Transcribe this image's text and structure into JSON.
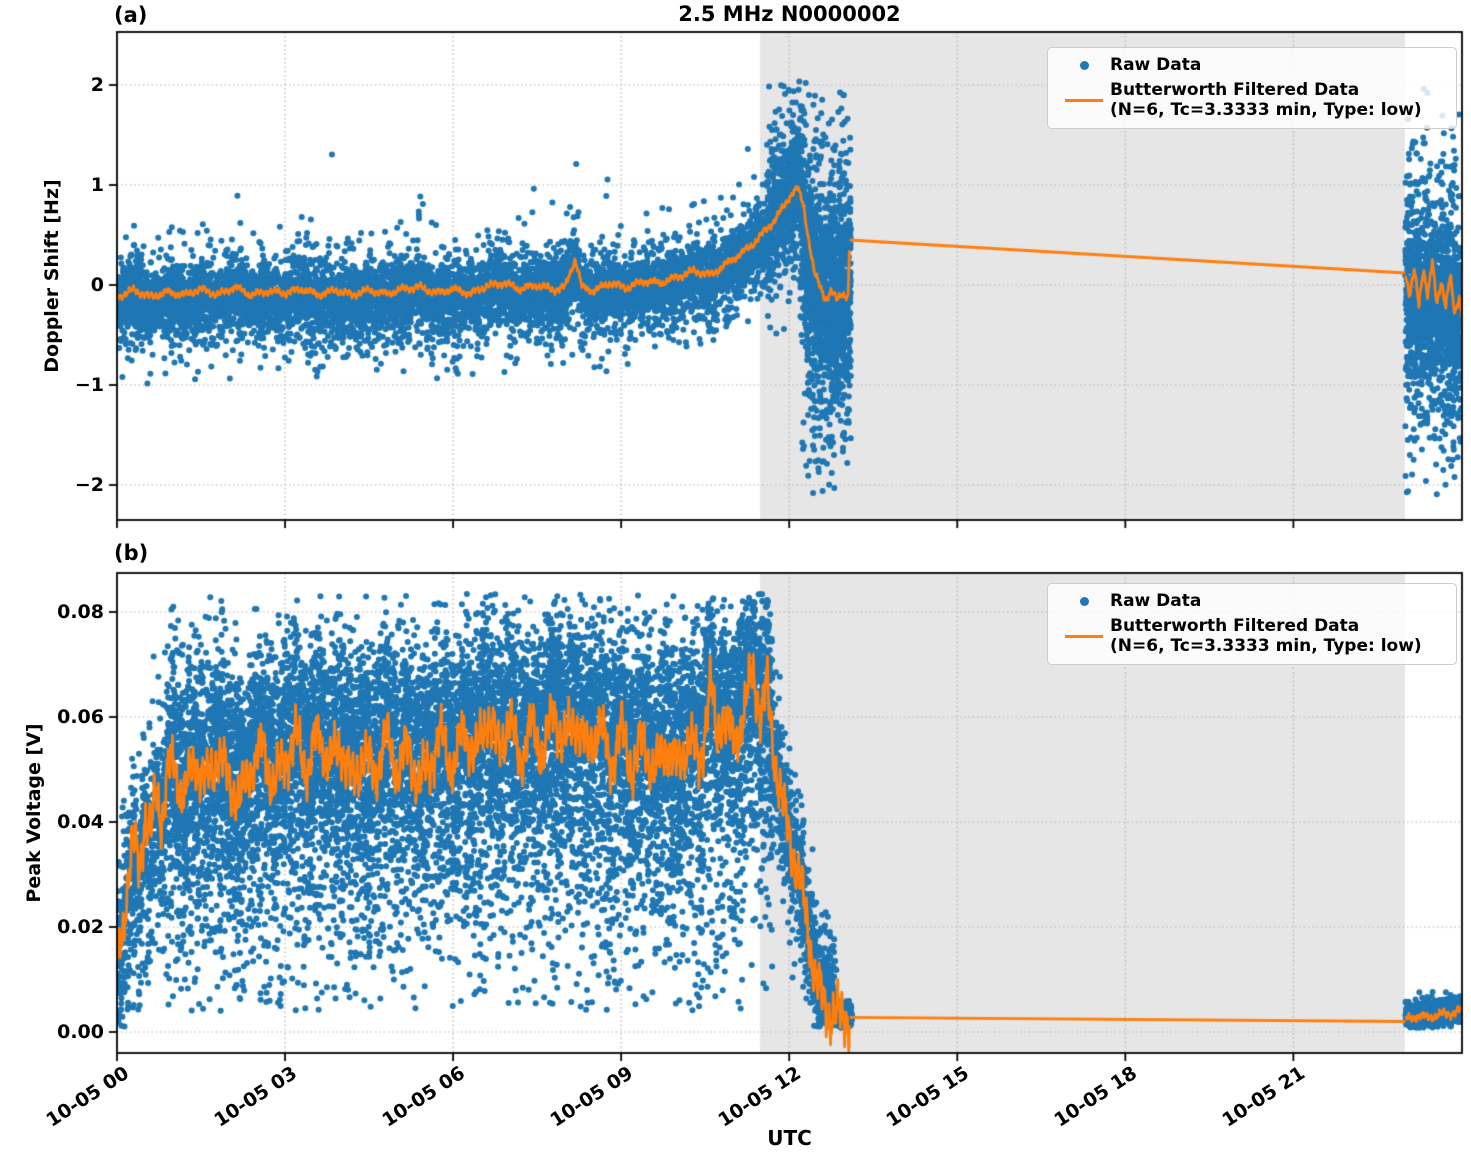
{
  "figure": {
    "panel_count": 2,
    "background": "#ffffff"
  },
  "legend": {
    "raw_label": "Raw Data",
    "filtered_label_line1": "Butterworth Filtered Data",
    "filtered_label_line2": "(N=6, Tc=3.3333 min, Type: low)"
  },
  "colors": {
    "raw": "#1f77b4",
    "filtered": "#ff7f0e",
    "shaded_region": "#e6e6e6",
    "grid": "#b3b3b3",
    "spine": "#000000",
    "legend_border": "#cccccc"
  },
  "chart_data": [
    {
      "type": "scatter",
      "panel_label": "(a)",
      "title": "2.5 MHz N0000002",
      "ylabel": "Doppler Shift [Hz]",
      "x_unit": "hours since 10-05 00:00 UTC",
      "x_axis": {
        "lim": [
          0,
          24.01
        ],
        "ticks": [
          0,
          3,
          6,
          9,
          12,
          15,
          18,
          21
        ]
      },
      "y_axis": {
        "lim": [
          -2.35,
          2.53
        ],
        "ticks": [
          -2,
          -1,
          0,
          1,
          2
        ],
        "tick_labels": [
          "−2",
          "−1",
          "0",
          "1",
          "2"
        ]
      },
      "shaded_region": {
        "t0": 11.48,
        "t1": 22.99
      },
      "legend_entries": [
        "Raw Data",
        "Butterworth Filtered Data (N=6, Tc=3.3333 min, Type: low)"
      ],
      "filtered_segments": [
        {
          "wiggle_amp": 0.035,
          "points": [
            [
              0,
              -0.12
            ],
            [
              0.3,
              -0.05
            ],
            [
              0.6,
              -0.12
            ],
            [
              0.9,
              -0.07
            ],
            [
              1.2,
              -0.1
            ],
            [
              1.5,
              -0.04
            ],
            [
              1.8,
              -0.1
            ],
            [
              2.1,
              -0.02
            ],
            [
              2.4,
              -0.1
            ],
            [
              2.7,
              -0.06
            ],
            [
              3,
              -0.08
            ],
            [
              3.3,
              -0.04
            ],
            [
              3.6,
              -0.1
            ],
            [
              3.9,
              -0.05
            ],
            [
              4.2,
              -0.1
            ],
            [
              4.5,
              -0.05
            ],
            [
              4.8,
              -0.09
            ],
            [
              5.1,
              -0.04
            ],
            [
              5.4,
              -0.02
            ],
            [
              5.7,
              -0.08
            ],
            [
              6,
              -0.04
            ],
            [
              6.3,
              -0.09
            ],
            [
              6.6,
              -0.01
            ],
            [
              6.9,
              0.02
            ],
            [
              7.2,
              -0.04
            ],
            [
              7.5,
              0
            ],
            [
              7.8,
              -0.05
            ],
            [
              8,
              -0.02
            ],
            [
              8.18,
              0.26
            ],
            [
              8.3,
              -0.02
            ],
            [
              8.5,
              -0.06
            ],
            [
              8.8,
              0.02
            ],
            [
              9.1,
              -0.03
            ],
            [
              9.4,
              0.04
            ],
            [
              9.7,
              0.02
            ],
            [
              10,
              0.08
            ],
            [
              10.3,
              0.14
            ],
            [
              10.6,
              0.1
            ],
            [
              10.9,
              0.22
            ],
            [
              11.1,
              0.3
            ],
            [
              11.3,
              0.38
            ],
            [
              11.5,
              0.5
            ],
            [
              11.7,
              0.62
            ],
            [
              11.9,
              0.78
            ],
            [
              12.05,
              0.92
            ],
            [
              12.15,
              0.97
            ],
            [
              12.25,
              0.8
            ],
            [
              12.35,
              0.45
            ],
            [
              12.45,
              0.12
            ],
            [
              12.55,
              -0.02
            ],
            [
              12.65,
              -0.14
            ],
            [
              12.75,
              -0.06
            ],
            [
              12.85,
              -0.15
            ],
            [
              12.95,
              -0.08
            ],
            [
              13.05,
              -0.12
            ],
            [
              13.08,
              0.45
            ]
          ]
        },
        {
          "wiggle_amp": 0,
          "points": [
            [
              13.08,
              0.45
            ],
            [
              23.0,
              0.12
            ]
          ]
        },
        {
          "wiggle_amp": 0.05,
          "points": [
            [
              23.0,
              0.12
            ],
            [
              23.08,
              -0.12
            ],
            [
              23.16,
              0.14
            ],
            [
              23.24,
              -0.18
            ],
            [
              23.32,
              0.18
            ],
            [
              23.4,
              -0.12
            ],
            [
              23.48,
              0.22
            ],
            [
              23.56,
              -0.18
            ],
            [
              23.64,
              0.05
            ],
            [
              23.72,
              -0.22
            ],
            [
              23.8,
              0.08
            ],
            [
              23.88,
              -0.28
            ],
            [
              23.96,
              -0.1
            ],
            [
              24.01,
              -0.3
            ]
          ]
        }
      ],
      "raw_segments": [
        {
          "t0": 0,
          "t1": 11.6,
          "n": 9000,
          "center": "filtered",
          "mix": [
            [
              0.5,
              0.12,
              -0.03
            ],
            [
              0.3,
              0.2,
              -0.1
            ],
            [
              0.16,
              0.3,
              -0.12
            ],
            [
              0.04,
              0.3,
              0.18
            ]
          ],
          "clip": [
            -1.0,
            1.6
          ]
        },
        {
          "t0": 11.6,
          "t1": 12.2,
          "n": 800,
          "center": "filtered",
          "mix": [
            [
              0.55,
              0.22,
              0
            ],
            [
              0.3,
              0.4,
              0
            ],
            [
              0.15,
              0.55,
              0.45
            ]
          ],
          "clip": [
            -0.5,
            2.05
          ]
        },
        {
          "t0": 12.2,
          "t1": 13.1,
          "n": 1700,
          "center": [
            [
              12.2,
              0.55
            ],
            [
              12.3,
              0.2
            ],
            [
              12.45,
              0
            ],
            [
              12.7,
              -0.1
            ],
            [
              13.1,
              -0.05
            ]
          ],
          "mix": [
            [
              0.45,
              0.4,
              0
            ],
            [
              0.35,
              0.75,
              0
            ],
            [
              0.2,
              1.05,
              0
            ]
          ],
          "clip": [
            -2.12,
            2.06
          ]
        },
        {
          "t0": 23.0,
          "t1": 24.01,
          "n": 1500,
          "center": [
            [
              23,
              -0.05
            ],
            [
              24.01,
              -0.3
            ]
          ],
          "mix": [
            [
              0.5,
              0.4,
              0
            ],
            [
              0.3,
              0.7,
              0
            ],
            [
              0.2,
              0.95,
              0
            ]
          ],
          "clip": [
            -2.1,
            2.05
          ]
        }
      ]
    },
    {
      "type": "scatter",
      "panel_label": "(b)",
      "ylabel": "Peak Voltage [V]",
      "xlabel": "UTC",
      "x_unit": "hours since 10-05 00:00 UTC",
      "x_axis": {
        "lim": [
          0,
          24.01
        ],
        "ticks": [
          0,
          3,
          6,
          9,
          12,
          15,
          18,
          21
        ],
        "tick_labels": [
          "10-05 00",
          "10-05 03",
          "10-05 06",
          "10-05 09",
          "10-05 12",
          "10-05 15",
          "10-05 18",
          "10-05 21"
        ]
      },
      "y_axis": {
        "lim": [
          -0.004,
          0.08743
        ],
        "ticks": [
          0,
          0.02,
          0.04,
          0.06,
          0.08
        ],
        "tick_labels": [
          "0.00",
          "0.02",
          "0.04",
          "0.06",
          "0.08"
        ]
      },
      "shaded_region": {
        "t0": 11.48,
        "t1": 22.99
      },
      "legend_entries": [
        "Raw Data",
        "Butterworth Filtered Data (N=6, Tc=3.3333 min, Type: low)"
      ],
      "filtered_segments": [
        {
          "wiggle_amp": 0.005,
          "points": [
            [
              0,
              0.012
            ],
            [
              0.1,
              0.02
            ],
            [
              0.2,
              0.03
            ],
            [
              0.3,
              0.036
            ],
            [
              0.4,
              0.031
            ],
            [
              0.5,
              0.042
            ],
            [
              0.6,
              0.037
            ],
            [
              0.7,
              0.046
            ],
            [
              0.8,
              0.041
            ],
            [
              0.9,
              0.049
            ],
            [
              1,
              0.051
            ],
            [
              1.2,
              0.045
            ],
            [
              1.4,
              0.052
            ],
            [
              1.6,
              0.047
            ],
            [
              1.8,
              0.053
            ],
            [
              2,
              0.048
            ],
            [
              2.2,
              0.044
            ],
            [
              2.4,
              0.051
            ],
            [
              2.6,
              0.054
            ],
            [
              2.8,
              0.047
            ],
            [
              3,
              0.052
            ],
            [
              3.2,
              0.056
            ],
            [
              3.4,
              0.05
            ],
            [
              3.6,
              0.057
            ],
            [
              3.8,
              0.051
            ],
            [
              4,
              0.055
            ],
            [
              4.2,
              0.047
            ],
            [
              4.4,
              0.053
            ],
            [
              4.6,
              0.049
            ],
            [
              4.8,
              0.056
            ],
            [
              5,
              0.05
            ],
            [
              5.2,
              0.054
            ],
            [
              5.4,
              0.047
            ],
            [
              5.6,
              0.052
            ],
            [
              5.8,
              0.056
            ],
            [
              6,
              0.05
            ],
            [
              6.2,
              0.058
            ],
            [
              6.4,
              0.052
            ],
            [
              6.6,
              0.061
            ],
            [
              6.8,
              0.054
            ],
            [
              7,
              0.059
            ],
            [
              7.2,
              0.052
            ],
            [
              7.4,
              0.058
            ],
            [
              7.6,
              0.053
            ],
            [
              7.8,
              0.061
            ],
            [
              8,
              0.055
            ],
            [
              8.2,
              0.06
            ],
            [
              8.4,
              0.053
            ],
            [
              8.6,
              0.059
            ],
            [
              8.8,
              0.051
            ],
            [
              9,
              0.057
            ],
            [
              9.2,
              0.05
            ],
            [
              9.4,
              0.056
            ],
            [
              9.6,
              0.049
            ],
            [
              9.8,
              0.055
            ],
            [
              10,
              0.05
            ],
            [
              10.2,
              0.056
            ],
            [
              10.4,
              0.051
            ],
            [
              10.6,
              0.066
            ],
            [
              10.7,
              0.056
            ],
            [
              10.8,
              0.061
            ],
            [
              11,
              0.055
            ],
            [
              11.2,
              0.061
            ],
            [
              11.35,
              0.069
            ],
            [
              11.5,
              0.06
            ],
            [
              11.6,
              0.066
            ],
            [
              11.7,
              0.056
            ],
            [
              11.8,
              0.048
            ],
            [
              11.9,
              0.042
            ],
            [
              12,
              0.038
            ],
            [
              12.1,
              0.033
            ],
            [
              12.2,
              0.028
            ],
            [
              12.3,
              0.022
            ],
            [
              12.4,
              0.015
            ],
            [
              12.5,
              0.009
            ],
            [
              12.6,
              0.0055
            ],
            [
              12.7,
              0.004
            ],
            [
              12.8,
              0.0032
            ],
            [
              12.9,
              0.0028
            ],
            [
              13,
              0.003
            ],
            [
              13.08,
              0.003
            ]
          ]
        },
        {
          "wiggle_amp": 0,
          "points": [
            [
              13.08,
              0.0028
            ],
            [
              23.0,
              0.002
            ]
          ]
        },
        {
          "wiggle_amp": 0.0008,
          "points": [
            [
              23.0,
              0.0025
            ],
            [
              23.2,
              0.003
            ],
            [
              23.4,
              0.0028
            ],
            [
              23.6,
              0.0033
            ],
            [
              23.8,
              0.0035
            ],
            [
              24.01,
              0.0042
            ]
          ]
        }
      ],
      "raw_segments": [
        {
          "t0": 0,
          "t1": 0.9,
          "n": 700,
          "center": "filtered",
          "mix": [
            [
              0.5,
              0.006,
              0
            ],
            [
              0.3,
              0.011,
              -0.004
            ],
            [
              0.2,
              0.016,
              -0.01
            ]
          ],
          "clip": [
            0.0008,
            0.075
          ]
        },
        {
          "t0": 0.9,
          "t1": 11.7,
          "n": 12000,
          "center": "filtered",
          "mix": [
            [
              0.36,
              0.008,
              0.004
            ],
            [
              0.3,
              0.012,
              0.002
            ],
            [
              0.22,
              0.016,
              -0.008
            ],
            [
              0.12,
              0.02,
              -0.02
            ]
          ],
          "clip": [
            0.004,
            0.0835
          ]
        },
        {
          "t0": 11.7,
          "t1": 12.85,
          "n": 800,
          "center": "filtered",
          "mix": [
            [
              0.6,
              0.005,
              0
            ],
            [
              0.4,
              0.009,
              0
            ]
          ],
          "clip": [
            0.001,
            0.075
          ]
        },
        {
          "t0": 12.85,
          "t1": 13.12,
          "n": 400,
          "center": "filtered",
          "mix": [
            [
              1,
              0.0011,
              0
            ]
          ],
          "clip": [
            0.0008,
            0.006
          ]
        },
        {
          "t0": 23.0,
          "t1": 24.01,
          "n": 700,
          "center": "filtered",
          "mix": [
            [
              0.7,
              0.0011,
              0
            ],
            [
              0.3,
              0.0018,
              0.0008
            ]
          ],
          "clip": [
            0.0008,
            0.009
          ]
        }
      ]
    }
  ]
}
